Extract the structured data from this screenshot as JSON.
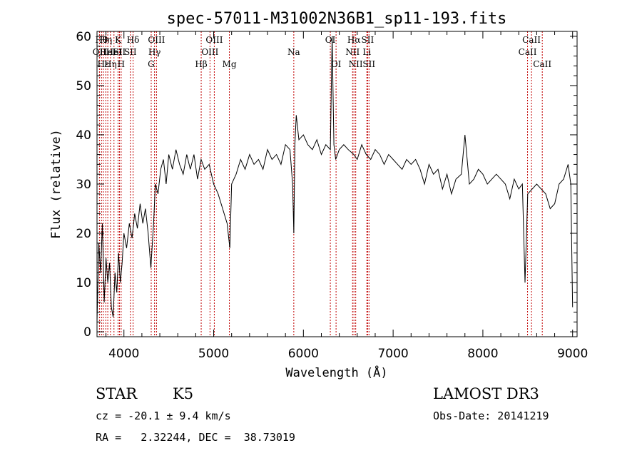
{
  "chart_data": {
    "type": "line",
    "title": "spec-57011-M31002N36B1_sp11-193.fits",
    "xlabel": "Wavelength (Å)",
    "ylabel": "Flux (relative)",
    "xlim": [
      3700,
      9050
    ],
    "ylim": [
      -1,
      61
    ],
    "xticks": [
      4000,
      5000,
      6000,
      7000,
      8000,
      9000
    ],
    "yticks": [
      0,
      10,
      20,
      30,
      40,
      50,
      60
    ],
    "series": [
      {
        "name": "flux",
        "x": [
          3700,
          3720,
          3740,
          3760,
          3780,
          3800,
          3820,
          3840,
          3860,
          3880,
          3900,
          3920,
          3940,
          3960,
          3980,
          4000,
          4030,
          4060,
          4090,
          4120,
          4150,
          4180,
          4210,
          4240,
          4270,
          4300,
          4330,
          4350,
          4380,
          4410,
          4440,
          4470,
          4500,
          4540,
          4580,
          4620,
          4660,
          4700,
          4740,
          4780,
          4820,
          4860,
          4900,
          4950,
          5000,
          5050,
          5100,
          5150,
          5180,
          5200,
          5250,
          5300,
          5350,
          5400,
          5450,
          5500,
          5550,
          5600,
          5650,
          5700,
          5750,
          5800,
          5850,
          5880,
          5893,
          5905,
          5920,
          5950,
          6000,
          6050,
          6100,
          6150,
          6200,
          6250,
          6300,
          6320,
          6340,
          6360,
          6400,
          6450,
          6500,
          6563,
          6600,
          6650,
          6700,
          6750,
          6800,
          6850,
          6900,
          6950,
          7000,
          7050,
          7100,
          7150,
          7200,
          7250,
          7300,
          7350,
          7400,
          7450,
          7500,
          7550,
          7600,
          7650,
          7700,
          7760,
          7800,
          7850,
          7900,
          7950,
          8000,
          8050,
          8100,
          8150,
          8200,
          8250,
          8300,
          8350,
          8400,
          8440,
          8470,
          8500,
          8550,
          8600,
          8650,
          8700,
          8750,
          8800,
          8850,
          8900,
          8950,
          8980,
          9000
        ],
        "values": [
          2,
          18,
          12,
          22,
          6,
          15,
          10,
          14,
          5,
          3,
          12,
          8,
          16,
          10,
          14,
          20,
          17,
          22,
          19,
          24,
          21,
          26,
          22,
          25,
          20,
          13,
          22,
          30,
          28,
          33,
          35,
          30,
          36,
          33,
          37,
          34,
          32,
          36,
          33,
          36,
          31,
          35,
          33,
          34,
          30,
          28,
          25,
          22,
          17,
          30,
          32,
          35,
          33,
          36,
          34,
          35,
          33,
          37,
          35,
          36,
          34,
          38,
          37,
          30,
          20,
          38,
          44,
          39,
          40,
          38,
          37,
          39,
          36,
          38,
          37,
          60,
          38,
          35,
          37,
          38,
          37,
          36,
          35,
          38,
          36,
          35,
          37,
          36,
          34,
          36,
          35,
          34,
          33,
          35,
          34,
          35,
          33,
          30,
          34,
          32,
          33,
          29,
          32,
          28,
          31,
          32,
          40,
          30,
          31,
          33,
          32,
          30,
          31,
          32,
          31,
          30,
          27,
          31,
          29,
          30,
          10,
          28,
          29,
          30,
          29,
          28,
          25,
          26,
          30,
          31,
          34,
          30,
          5
        ]
      }
    ],
    "lines": [
      {
        "x": 3727,
        "label": "OII",
        "row": 2
      },
      {
        "x": 3750,
        "label": "Hθ",
        "row": 1
      },
      {
        "x": 3770,
        "label": "Hε",
        "row": 3
      },
      {
        "x": 3798,
        "label": "Hη",
        "row": 1
      },
      {
        "x": 3820,
        "label": "HeI",
        "row": 2
      },
      {
        "x": 3850,
        "label": "Hη",
        "row": 3
      },
      {
        "x": 3889,
        "label": "HeI",
        "row": 2
      },
      {
        "x": 3934,
        "label": "K",
        "row": 1
      },
      {
        "x": 3950,
        "label": "SII",
        "row": 2
      },
      {
        "x": 3969,
        "label": "H",
        "row": 3
      },
      {
        "x": 4102,
        "label": "Hδ",
        "row": 1
      },
      {
        "x": 4072,
        "label": "SII",
        "row": 2
      },
      {
        "x": 4304,
        "label": "G",
        "row": 3
      },
      {
        "x": 4341,
        "label": "Hγ",
        "row": 2
      },
      {
        "x": 4363,
        "label": "OIII",
        "row": 1
      },
      {
        "x": 4861,
        "label": "Hβ",
        "row": 3
      },
      {
        "x": 4959,
        "label": "OIII",
        "row": 2
      },
      {
        "x": 5007,
        "label": "OIII",
        "row": 1
      },
      {
        "x": 5175,
        "label": "Mg",
        "row": 3
      },
      {
        "x": 5893,
        "label": "Na",
        "row": 2
      },
      {
        "x": 6300,
        "label": "OI",
        "row": 1
      },
      {
        "x": 6364,
        "label": "OI",
        "row": 3
      },
      {
        "x": 6548,
        "label": "NII",
        "row": 2
      },
      {
        "x": 6563,
        "label": "Hα",
        "row": 1
      },
      {
        "x": 6583,
        "label": "NII",
        "row": 3
      },
      {
        "x": 6707,
        "label": "Li",
        "row": 2
      },
      {
        "x": 6716,
        "label": "SII",
        "row": 1
      },
      {
        "x": 6731,
        "label": "SII",
        "row": 3
      },
      {
        "x": 8498,
        "label": "CaII",
        "row": 2
      },
      {
        "x": 8542,
        "label": "CaII",
        "row": 1
      },
      {
        "x": 8662,
        "label": "CaII",
        "row": 3
      }
    ]
  },
  "info": {
    "class_label": "STAR",
    "subclass": "K5",
    "survey": "LAMOST DR3",
    "redshift": "cz = -20.1 ± 9.4 km/s",
    "obs_date": "Obs-Date: 20141219",
    "coords": "RA =   2.32244, DEC =  38.73019"
  }
}
